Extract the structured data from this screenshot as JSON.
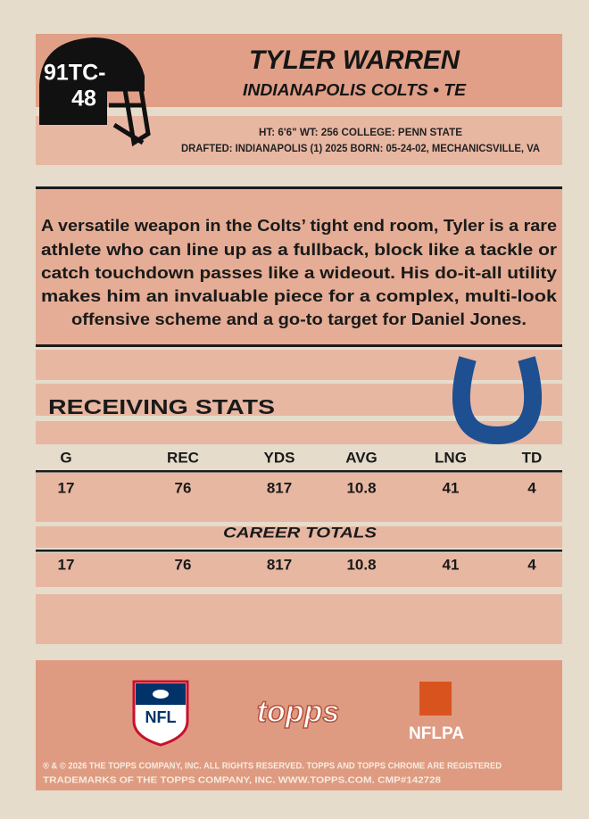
{
  "card_number": {
    "line1": "91TC-",
    "line2": "48"
  },
  "player": {
    "name": "TYLER WARREN",
    "team_position": "INDIANAPOLIS COLTS • TE",
    "info_line1": "HT: 6'6\"  WT: 256   COLLEGE: PENN STATE",
    "info_line2": "DRAFTED: INDIANAPOLIS (1) 2025   BORN: 05-24-02, MECHANICSVILLE, VA"
  },
  "bio": [
    "A versatile weapon in the Colts’ tight end room, Tyler is a rare",
    "athlete who can line up as a fullback, block like a tackle or",
    "catch touchdown passes like a wideout. His do-it-all utility",
    "makes him an invaluable piece for a complex, multi-look",
    "offensive scheme and a go-to target for Daniel Jones."
  ],
  "stats": {
    "title": "RECEIVING STATS",
    "columns": [
      "G",
      "REC",
      "YDS",
      "AVG",
      "LNG",
      "TD"
    ],
    "season": [
      17,
      76,
      817,
      10.8,
      41,
      4
    ],
    "career_label": "CAREER TOTALS",
    "career": [
      17,
      76,
      817,
      10.8,
      41,
      4
    ]
  },
  "footer": {
    "logos": {
      "nfl": "NFL",
      "topps": "topps",
      "nflpa": "NFLPA"
    },
    "legal": [
      "® & © 2026 THE TOPPS COMPANY, INC. ALL RIGHTS RESERVED. TOPPS AND TOPPS CHROME ARE REGISTERED",
      "TRADEMARKS OF THE TOPPS COMPANY, INC. WWW.TOPPS.COM. CMP#142728"
    ]
  }
}
